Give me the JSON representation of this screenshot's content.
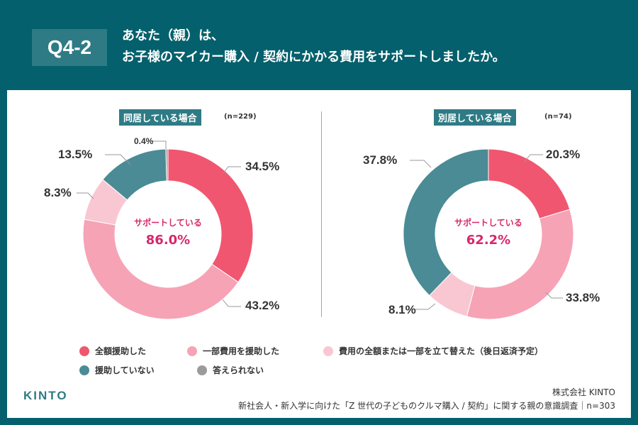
{
  "header": {
    "badge": "Q4-2",
    "title_line1": "あなた（親）は、",
    "title_line2": "お子様のマイカー購入 / 契約にかかる費用をサポートしましたか。"
  },
  "colors": {
    "full": "#f0566f",
    "partial": "#f6a3b6",
    "advance": "#f9c7d2",
    "none": "#4a8b95",
    "na": "#9b9b9b",
    "header": "#04606c",
    "accent": "#d6286a"
  },
  "legend": [
    {
      "label": "全額援助した",
      "color": "#f0566f"
    },
    {
      "label": "一部費用を援助した",
      "color": "#f6a3b6"
    },
    {
      "label": "費用の全額または一部を立て替えた（後日返済予定）",
      "color": "#f9c7d2"
    },
    {
      "label": "援助していない",
      "color": "#4a8b95"
    },
    {
      "label": "答えられない",
      "color": "#9b9b9b"
    }
  ],
  "chart_data": [
    {
      "type": "pie",
      "donut": true,
      "title": "同居している場合",
      "n_label": "(n=229)",
      "center_label": "サポートしている",
      "center_value": "86.0%",
      "categories": [
        "全額援助した",
        "一部費用を援助した",
        "費用の全額または一部を立て替えた（後日返済予定）",
        "援助していない",
        "答えられない"
      ],
      "values": [
        34.5,
        43.2,
        8.3,
        13.5,
        0.4
      ],
      "value_labels": [
        "34.5%",
        "43.2%",
        "8.3%",
        "13.5%",
        "0.4%"
      ]
    },
    {
      "type": "pie",
      "donut": true,
      "title": "別居している場合",
      "n_label": "(n=74)",
      "center_label": "サポートしている",
      "center_value": "62.2%",
      "categories": [
        "全額援助した",
        "一部費用を援助した",
        "費用の全額または一部を立て替えた（後日返済予定）",
        "援助していない"
      ],
      "values": [
        20.3,
        33.8,
        8.1,
        37.8
      ],
      "value_labels": [
        "20.3%",
        "33.8%",
        "8.1%",
        "37.8%"
      ]
    }
  ],
  "footer": {
    "logo": "KINTO",
    "company": "株式会社 KINTO",
    "source": "新社会人・新入学に向けた「Z 世代の子どものクルマ購入 / 契約」に関する親の意識調査｜n=303"
  }
}
